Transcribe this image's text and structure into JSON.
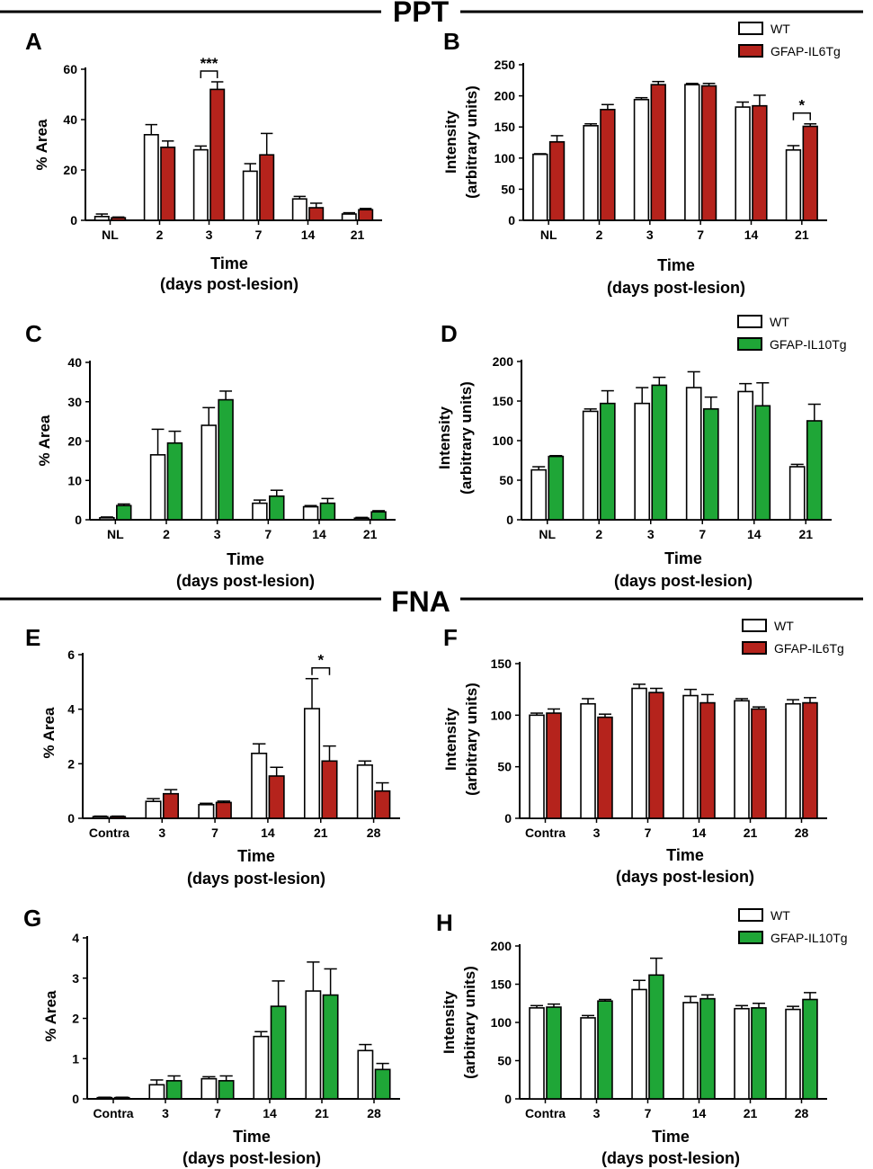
{
  "sections": {
    "top": "PPT",
    "bottom": "FNA"
  },
  "colors": {
    "wt": "#ffffff",
    "il6": "#b5231c",
    "il10": "#1fa637"
  },
  "chart_data": [
    {
      "id": "A",
      "panel": "A",
      "type": "bar",
      "ylabel": "% Area",
      "xlabel": "Time",
      "xlabel2": "(days post-lesion)",
      "ylim": [
        0,
        60
      ],
      "yticks": [
        "0",
        "20",
        "40",
        "60"
      ],
      "categories": [
        "NL",
        "2",
        "3",
        "7",
        "14",
        "21"
      ],
      "series": [
        {
          "name": "WT",
          "color": "#ffffff",
          "values": [
            1.5,
            34,
            28,
            19.5,
            8.5,
            2.5
          ],
          "errors": [
            1,
            4,
            1.5,
            3,
            1,
            0.5
          ]
        },
        {
          "name": "GFAP-IL6Tg",
          "color": "#b5231c",
          "values": [
            1,
            29,
            52,
            26,
            5,
            4.2
          ],
          "errors": [
            0.3,
            2.5,
            3,
            8.5,
            1.8,
            0.5
          ]
        }
      ],
      "significance": [
        {
          "category": 2,
          "label": "***"
        }
      ]
    },
    {
      "id": "B",
      "panel": "B",
      "type": "bar",
      "ylabel": "Intensity",
      "ylabel2": "(arbitrary units)",
      "xlabel": "Time",
      "xlabel2": "(days post-lesion)",
      "ylim": [
        0,
        250
      ],
      "yticks": [
        "0",
        "50",
        "100",
        "150",
        "200",
        "250"
      ],
      "categories": [
        "NL",
        "2",
        "3",
        "7",
        "14",
        "21"
      ],
      "series": [
        {
          "name": "WT",
          "color": "#ffffff",
          "values": [
            106,
            152,
            194,
            218,
            182,
            113
          ],
          "errors": [
            1,
            3,
            3,
            2,
            8,
            7
          ]
        },
        {
          "name": "GFAP-IL6Tg",
          "color": "#b5231c",
          "values": [
            126,
            178,
            218,
            216,
            184,
            151
          ],
          "errors": [
            10,
            8,
            5,
            4,
            17,
            4
          ]
        }
      ],
      "legend": [
        "WT",
        "GFAP-IL6Tg"
      ],
      "significance": [
        {
          "category": 5,
          "label": "*"
        }
      ]
    },
    {
      "id": "C",
      "panel": "C",
      "type": "bar",
      "ylabel": "% Area",
      "xlabel": "Time",
      "xlabel2": "(days post-lesion)",
      "ylim": [
        0,
        40
      ],
      "yticks": [
        "0",
        "10",
        "20",
        "30",
        "40"
      ],
      "categories": [
        "NL",
        "2",
        "3",
        "7",
        "14",
        "21"
      ],
      "series": [
        {
          "name": "WT",
          "color": "#ffffff",
          "values": [
            0.5,
            16.5,
            24,
            4.2,
            3.3,
            0.4
          ],
          "errors": [
            0.2,
            6.5,
            4.5,
            0.8,
            0.3,
            0.2
          ]
        },
        {
          "name": "GFAP-IL10Tg",
          "color": "#1fa637",
          "values": [
            3.6,
            19.5,
            30.5,
            6,
            4.2,
            2
          ],
          "errors": [
            0.4,
            3,
            2.2,
            1.5,
            1.2,
            0.3
          ]
        }
      ]
    },
    {
      "id": "D",
      "panel": "D",
      "type": "bar",
      "ylabel": "Intensity",
      "ylabel2": "(arbitrary units)",
      "xlabel": "Time",
      "xlabel2": "(days post-lesion)",
      "ylim": [
        0,
        200
      ],
      "yticks": [
        "0",
        "50",
        "100",
        "150",
        "200"
      ],
      "categories": [
        "NL",
        "2",
        "3",
        "7",
        "14",
        "21"
      ],
      "series": [
        {
          "name": "WT",
          "color": "#ffffff",
          "values": [
            63,
            137,
            147,
            167,
            162,
            67
          ],
          "errors": [
            4,
            3,
            20,
            20,
            10,
            3
          ]
        },
        {
          "name": "GFAP-IL10Tg",
          "color": "#1fa637",
          "values": [
            80,
            147,
            170,
            140,
            144,
            125
          ],
          "errors": [
            1,
            16,
            10,
            15,
            29,
            21
          ]
        }
      ],
      "legend": [
        "WT",
        "GFAP-IL10Tg"
      ]
    },
    {
      "id": "E",
      "panel": "E",
      "type": "bar",
      "ylabel": "% Area",
      "xlabel": "Time",
      "xlabel2": "(days post-lesion)",
      "ylim": [
        0,
        6
      ],
      "yticks": [
        "0",
        "2",
        "4",
        "6"
      ],
      "categories": [
        "Contra",
        "3",
        "7",
        "14",
        "21",
        "28"
      ],
      "series": [
        {
          "name": "WT",
          "color": "#ffffff",
          "values": [
            0.06,
            0.62,
            0.5,
            2.38,
            4.02,
            1.95
          ],
          "errors": [
            0.02,
            0.1,
            0.05,
            0.35,
            1.1,
            0.15
          ]
        },
        {
          "name": "GFAP-IL6Tg",
          "color": "#b5231c",
          "values": [
            0.06,
            0.9,
            0.58,
            1.55,
            2.1,
            1.0
          ],
          "errors": [
            0.02,
            0.15,
            0.05,
            0.32,
            0.55,
            0.3
          ]
        }
      ],
      "significance": [
        {
          "category": 4,
          "label": "*"
        }
      ]
    },
    {
      "id": "F",
      "panel": "F",
      "type": "bar",
      "ylabel": "Intensity",
      "ylabel2": "(arbitrary units)",
      "xlabel": "Time",
      "xlabel2": "(days post-lesion)",
      "ylim": [
        0,
        150
      ],
      "yticks": [
        "0",
        "50",
        "100",
        "150"
      ],
      "categories": [
        "Contra",
        "3",
        "7",
        "14",
        "21",
        "28"
      ],
      "series": [
        {
          "name": "WT",
          "color": "#ffffff",
          "values": [
            100,
            111,
            126,
            119,
            114,
            111
          ],
          "errors": [
            2,
            5,
            4,
            6,
            2,
            4
          ]
        },
        {
          "name": "GFAP-IL6Tg",
          "color": "#b5231c",
          "values": [
            102,
            98,
            122,
            112,
            106,
            112
          ],
          "errors": [
            4,
            3,
            4,
            8,
            2,
            5
          ]
        }
      ],
      "legend": [
        "WT",
        "GFAP-IL6Tg"
      ]
    },
    {
      "id": "G",
      "panel": "G",
      "type": "bar",
      "ylabel": "% Area",
      "xlabel": "Time",
      "xlabel2": "(days post-lesion)",
      "ylim": [
        0,
        4
      ],
      "yticks": [
        "0",
        "1",
        "2",
        "3",
        "4"
      ],
      "categories": [
        "Contra",
        "3",
        "7",
        "14",
        "21",
        "28"
      ],
      "series": [
        {
          "name": "WT",
          "color": "#ffffff",
          "values": [
            0.03,
            0.35,
            0.5,
            1.55,
            2.68,
            1.2
          ],
          "errors": [
            0.01,
            0.12,
            0.05,
            0.12,
            0.72,
            0.15
          ]
        },
        {
          "name": "GFAP-IL10Tg",
          "color": "#1fa637",
          "values": [
            0.03,
            0.45,
            0.45,
            2.3,
            2.58,
            0.73
          ],
          "errors": [
            0.01,
            0.12,
            0.12,
            0.63,
            0.65,
            0.15
          ]
        }
      ]
    },
    {
      "id": "H",
      "panel": "H",
      "type": "bar",
      "ylabel": "Intensity",
      "ylabel2": "(arbitrary units)",
      "xlabel": "Time",
      "xlabel2": "(days post-lesion)",
      "ylim": [
        0,
        200
      ],
      "yticks": [
        "0",
        "50",
        "100",
        "150",
        "200"
      ],
      "categories": [
        "Contra",
        "3",
        "7",
        "14",
        "21",
        "28"
      ],
      "series": [
        {
          "name": "WT",
          "color": "#ffffff",
          "values": [
            119,
            106,
            143,
            126,
            118,
            117
          ],
          "errors": [
            3,
            3,
            12,
            8,
            4,
            4
          ]
        },
        {
          "name": "GFAP-IL10Tg",
          "color": "#1fa637",
          "values": [
            120,
            128,
            162,
            131,
            119,
            130
          ],
          "errors": [
            4,
            2,
            22,
            5,
            6,
            9
          ]
        }
      ],
      "legend": [
        "WT",
        "GFAP-IL10Tg"
      ]
    }
  ]
}
